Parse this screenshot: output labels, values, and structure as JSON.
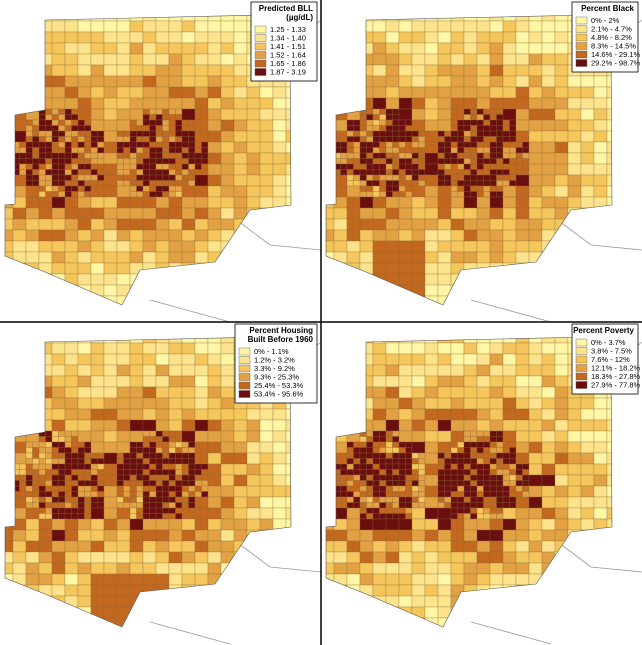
{
  "palette": [
    "#fff7a6",
    "#fde48c",
    "#f5c65c",
    "#e2a142",
    "#c2681f",
    "#6a0e0e"
  ],
  "panels": [
    {
      "legend_title": [
        "Predicted BLL",
        "(µg/dL)"
      ],
      "legend_items": [
        "1.25 - 1.33",
        "1.34 - 1.40",
        "1.41 - 1.51",
        "1.52 - 1.64",
        "1.65 - 1.86",
        "1.87 - 3.19"
      ]
    },
    {
      "legend_title": [
        "Percent Black"
      ],
      "legend_items": [
        "0% - 2%",
        "2.1% - 4.7%",
        "4.8% - 8.2%",
        "8.3% - 14.5%",
        "14.6% - 29.1%",
        "29.2% - 98.7%"
      ]
    },
    {
      "legend_title": [
        "Percent Housing",
        "Built Before 1960"
      ],
      "legend_items": [
        "0% - 1.1%",
        "1.2% - 3.2%",
        "3.3% - 9.2%",
        "9.3% - 25.3%",
        "25.4% - 53.3%",
        "53.4% - 95.6%"
      ]
    },
    {
      "legend_title": [
        "Percent Poverty"
      ],
      "legend_items": [
        "0% - 3.7%",
        "3.8% - 7.5%",
        "7.6% - 12%",
        "12.1% - 18.2%",
        "18.3% - 27.8%",
        "27.9% - 77.8%"
      ]
    }
  ]
}
